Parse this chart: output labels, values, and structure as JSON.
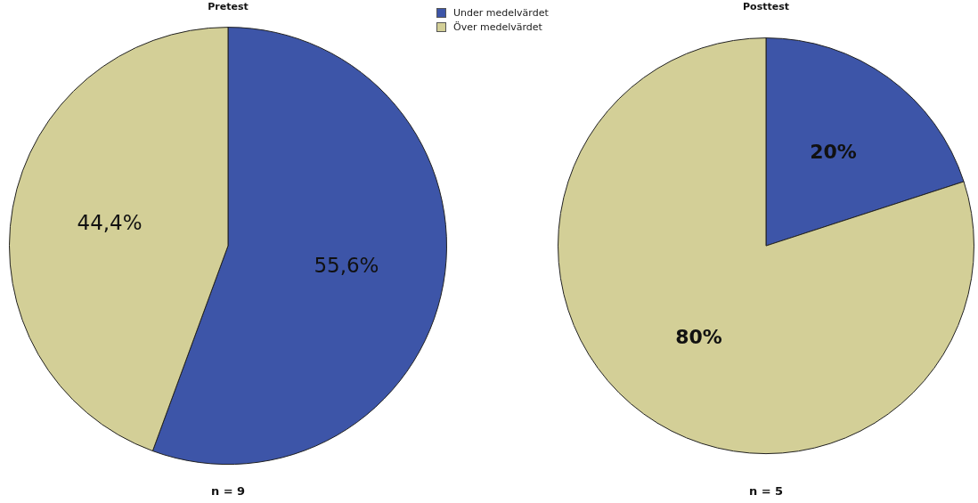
{
  "chart_data": [
    {
      "type": "pie",
      "title": "Pretest",
      "categories": [
        "Under medelvärdet",
        "Över medelvärdet"
      ],
      "values": [
        55.6,
        44.4
      ],
      "colors": [
        "#3d55a8",
        "#d3cf97"
      ],
      "value_labels": [
        "55,6%",
        "44,4%"
      ],
      "annotations": [
        "n = 9"
      ],
      "legend": "top right"
    },
    {
      "type": "pie",
      "title": "Posttest",
      "categories": [
        null,
        null
      ],
      "values": [
        20,
        80
      ],
      "colors": [
        "#3d55a8",
        "#d3cf97"
      ],
      "value_labels": [
        "20%",
        "80%"
      ],
      "annotations": [
        "n = 5"
      ]
    }
  ]
}
